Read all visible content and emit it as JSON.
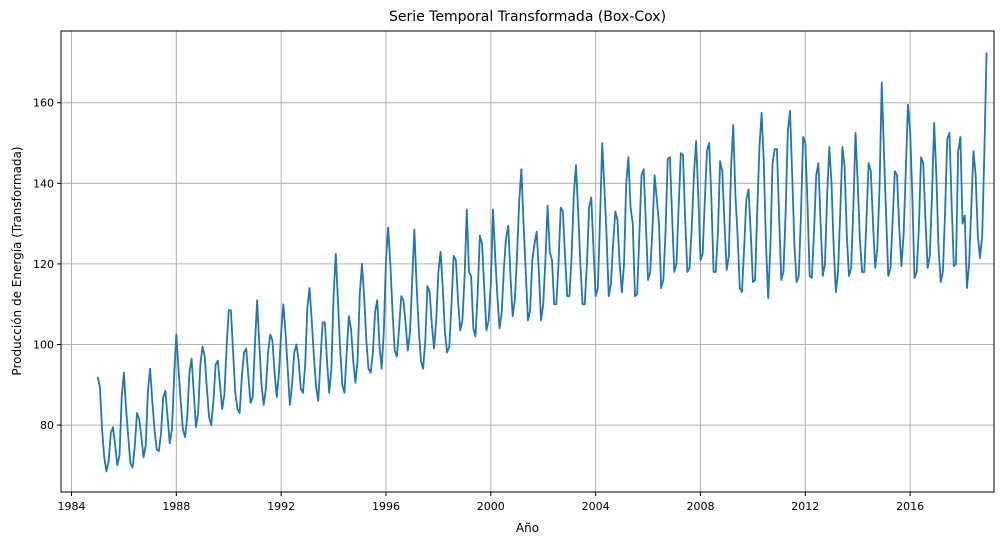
{
  "chart_data": {
    "type": "line",
    "title": "Serie Temporal Transformada (Box-Cox)",
    "xlabel": "Año",
    "ylabel": "Producción de Energía (Transformada)",
    "xlim": [
      1983.6,
      2019.2
    ],
    "ylim": [
      63.4,
      177.8
    ],
    "x_ticks": [
      1984,
      1988,
      1992,
      1996,
      2000,
      2004,
      2008,
      2012,
      2016
    ],
    "x_tick_labels": [
      "1984",
      "1988",
      "1992",
      "1996",
      "2000",
      "2004",
      "2008",
      "2012",
      "2016"
    ],
    "y_ticks": [
      80,
      100,
      120,
      140,
      160
    ],
    "y_tick_labels": [
      "80",
      "100",
      "120",
      "140",
      "160"
    ],
    "grid": true,
    "series": [
      {
        "color": "#1f77b4",
        "x_start": "1985-01",
        "x_end": "2018-01",
        "frequency": "monthly",
        "values": [
          92,
          89.5,
          79,
          72,
          68.5,
          71,
          78,
          79.5,
          75,
          70,
          72.5,
          87,
          93,
          84,
          77,
          70.5,
          69.5,
          75,
          83,
          81.5,
          77,
          72,
          75,
          88.5,
          94,
          86,
          79,
          74,
          73.5,
          78,
          87,
          88.5,
          82,
          75.5,
          79,
          92,
          102.5,
          94,
          86,
          79,
          77,
          82,
          93,
          96.5,
          88,
          79.5,
          83,
          95,
          99.5,
          97,
          89,
          82,
          80,
          86,
          95,
          96,
          90,
          84,
          87.5,
          99,
          108.5,
          108.5,
          98,
          88,
          84,
          83,
          92,
          98,
          99,
          92,
          85.5,
          87,
          100,
          111,
          100,
          90,
          85,
          89,
          98,
          102.5,
          101,
          93,
          87,
          93,
          103,
          110,
          103,
          94,
          85,
          90,
          98,
          100,
          96,
          89,
          88,
          95,
          109,
          114,
          106,
          97,
          89.5,
          86,
          96,
          105.5,
          105.5,
          96,
          88,
          94,
          112,
          122.5,
          111,
          99,
          90,
          88,
          98,
          107,
          104,
          96,
          90.5,
          96,
          112.5,
          120,
          112,
          101,
          94,
          93,
          98,
          108,
          111,
          100,
          94,
          103,
          121,
          129,
          120,
          108,
          98.5,
          97,
          104,
          112,
          111,
          105,
          98.5,
          103,
          116,
          128.5,
          115,
          104,
          96,
          94,
          101,
          114.5,
          113,
          105,
          99,
          106,
          118,
          123,
          114,
          103,
          98,
          99.5,
          110,
          122,
          121,
          111,
          103.5,
          106,
          117,
          133.5,
          118,
          117,
          104,
          102,
          113,
          127,
          125,
          114,
          103.5,
          106,
          115,
          133.5,
          122,
          112,
          104,
          108,
          119,
          126.5,
          129.5,
          117,
          107,
          111,
          122,
          135.5,
          143.5,
          130,
          118,
          106,
          108.5,
          121,
          125,
          128,
          118,
          106,
          110,
          121,
          134.5,
          123,
          121,
          110,
          110,
          120,
          134,
          133,
          122,
          112,
          112,
          122,
          137,
          144.5,
          133,
          120,
          110,
          110,
          120,
          134,
          136.5,
          124,
          112,
          114,
          131,
          150,
          139,
          127,
          112,
          115,
          125,
          133,
          131,
          120,
          113,
          120,
          140,
          146.5,
          134,
          130,
          112,
          112.5,
          127,
          142,
          143.5,
          130,
          116,
          118,
          128.5,
          142,
          136,
          130,
          114,
          116,
          128,
          146,
          146.5,
          132,
          118,
          120,
          134,
          147.5,
          147,
          131,
          118,
          119,
          129,
          142,
          150.5,
          137,
          121,
          122.5,
          136,
          148,
          150,
          136,
          118,
          118,
          128,
          145.5,
          143,
          130,
          118.5,
          122,
          144,
          154.5,
          137,
          127,
          114,
          113,
          124,
          136,
          138.5,
          128,
          115.5,
          116,
          133,
          149,
          157.5,
          145,
          125,
          111.5,
          124,
          145,
          148.5,
          148.5,
          132,
          116,
          118,
          133,
          153,
          158,
          142,
          125,
          115.5,
          117,
          132,
          151.5,
          150,
          135,
          117,
          116.5,
          128,
          142,
          145,
          130,
          117,
          120,
          137,
          149,
          140,
          124,
          113,
          118,
          133,
          149,
          144,
          127,
          117,
          119,
          134,
          152.5,
          140,
          126,
          118,
          118,
          131,
          145,
          143,
          130,
          119,
          124,
          139,
          165,
          148,
          132,
          117,
          119,
          131,
          143,
          142,
          129,
          119.5,
          127,
          143,
          159.5,
          153,
          137,
          116.5,
          118,
          129,
          146.5,
          145,
          131,
          119,
          122,
          137,
          155,
          142,
          124,
          115.5,
          118,
          133,
          151,
          152.5,
          135,
          119.5,
          120,
          148,
          151.5,
          130,
          132,
          114,
          120,
          134,
          148,
          142,
          127,
          121.5,
          127,
          148,
          172.5
        ]
      }
    ]
  }
}
